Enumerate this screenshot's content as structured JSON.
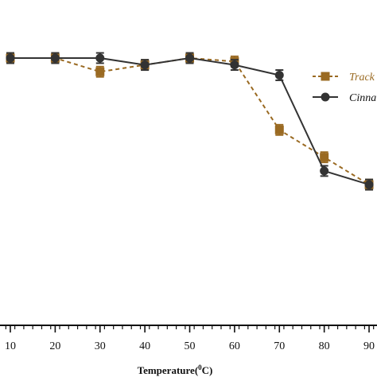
{
  "chart_data": {
    "type": "line",
    "xlabel_main": "Temperature(",
    "xlabel_sup": "0",
    "xlabel_tail": "C)",
    "ylabel": "",
    "x": [
      10,
      20,
      30,
      40,
      50,
      60,
      70,
      80,
      90
    ],
    "xlim": [
      5,
      92
    ],
    "ylim": [
      0,
      1.1
    ],
    "x_tick_labels": [
      "10",
      "20",
      "30",
      "40",
      "50",
      "60",
      "70",
      "80",
      "90"
    ],
    "grid": false,
    "legend_position": "right",
    "series": [
      {
        "name": "Track",
        "color": "#9a6a22",
        "marker": "square",
        "line_style": "dashed",
        "values": [
          1.0,
          1.0,
          0.96,
          0.98,
          1.0,
          0.99,
          0.79,
          0.71,
          0.63
        ],
        "errors": [
          0.015,
          0.015,
          0.015,
          0.015,
          0.015,
          0.015,
          0.015,
          0.015,
          0.015
        ]
      },
      {
        "name": "Cinna",
        "color": "#333333",
        "marker": "circle",
        "line_style": "solid",
        "values": [
          1.0,
          1.0,
          1.0,
          0.98,
          1.0,
          0.98,
          0.95,
          0.67,
          0.63
        ],
        "errors": [
          0.015,
          0.015,
          0.015,
          0.015,
          0.015,
          0.015,
          0.015,
          0.015,
          0.015
        ]
      }
    ]
  }
}
